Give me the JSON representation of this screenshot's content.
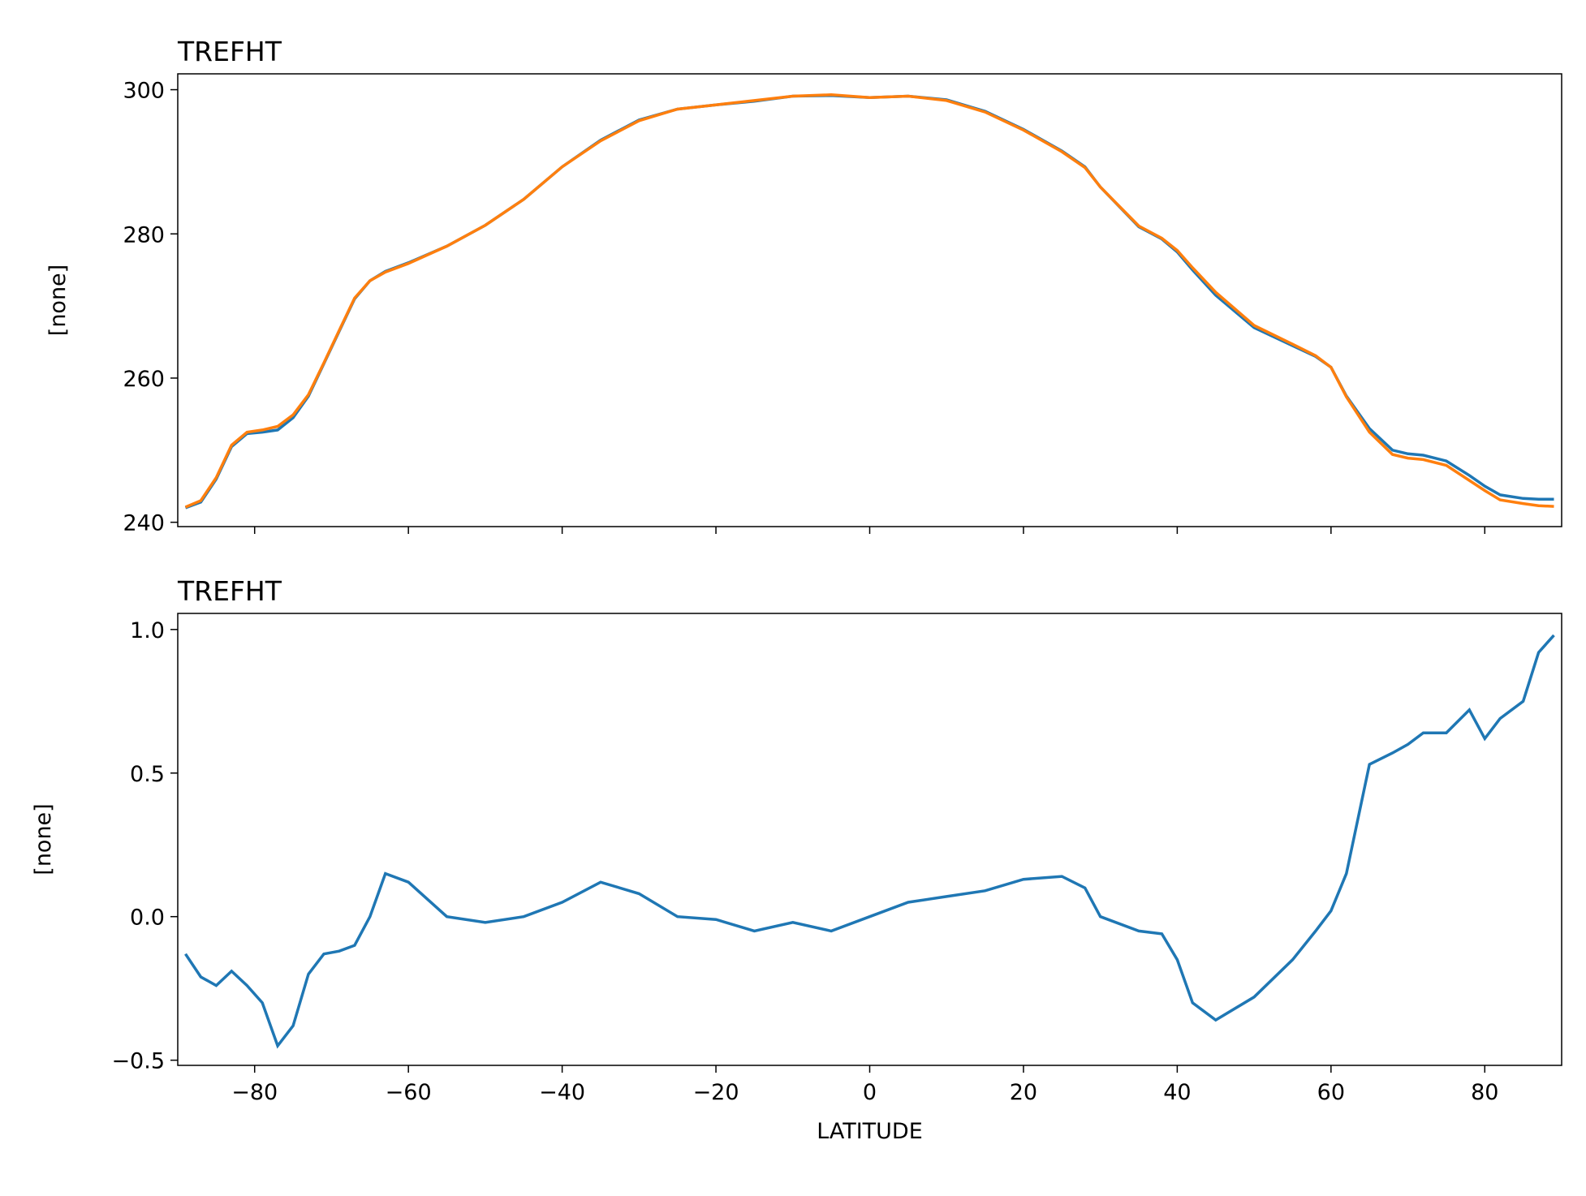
{
  "chart_data": [
    {
      "type": "line",
      "title": "TREFHT",
      "ylabel": "[none]",
      "x": [
        -89,
        -87,
        -85,
        -83,
        -81,
        -79,
        -77,
        -75,
        -73,
        -71,
        -69,
        -67,
        -65,
        -63,
        -60,
        -55,
        -50,
        -45,
        -40,
        -35,
        -30,
        -25,
        -20,
        -15,
        -10,
        -5,
        0,
        5,
        10,
        15,
        20,
        25,
        28,
        30,
        35,
        38,
        40,
        42,
        45,
        50,
        55,
        58,
        60,
        62,
        65,
        68,
        70,
        72,
        75,
        78,
        80,
        82,
        85,
        87,
        89
      ],
      "series": [
        {
          "color": "#1f77b4",
          "values": [
            242,
            242.8,
            246,
            250.5,
            252.3,
            252.5,
            252.8,
            254.5,
            257.5,
            262,
            266.5,
            271,
            273.5,
            274.8,
            276,
            278.3,
            281.2,
            284.8,
            289.3,
            293,
            295.8,
            297.3,
            297.9,
            298.4,
            299.1,
            299.2,
            298.9,
            299.1,
            298.6,
            297,
            294.5,
            291.5,
            289.3,
            286.5,
            281,
            279.3,
            277.5,
            275,
            271.5,
            267,
            264.5,
            263,
            261.5,
            257.5,
            253,
            250,
            249.5,
            249.3,
            248.5,
            246.5,
            245,
            243.8,
            243.3,
            243.2,
            243.2
          ]
        },
        {
          "color": "#ff7f0e",
          "values": [
            242.1,
            243.0,
            246.2,
            250.7,
            252.5,
            252.8,
            253.3,
            254.9,
            257.7,
            262.1,
            266.6,
            271.1,
            273.5,
            274.7,
            275.9,
            278.3,
            281.2,
            284.8,
            289.3,
            292.9,
            295.7,
            297.3,
            297.9,
            298.5,
            299.1,
            299.3,
            298.9,
            299.1,
            298.5,
            296.9,
            294.4,
            291.4,
            289.2,
            286.5,
            281.1,
            279.4,
            277.7,
            275.3,
            271.9,
            267.3,
            264.7,
            263.1,
            261.5,
            257.4,
            252.5,
            249.4,
            248.9,
            248.7,
            247.9,
            245.8,
            244.4,
            243.1,
            242.6,
            242.3,
            242.2
          ]
        }
      ],
      "xlim": [
        -90,
        90
      ],
      "xticks": [
        {
          "value": -80,
          "label": "−80"
        },
        {
          "value": -60,
          "label": "−60"
        },
        {
          "value": -40,
          "label": "−40"
        },
        {
          "value": -20,
          "label": "−20"
        },
        0,
        20,
        40,
        60,
        80
      ],
      "ylim": [
        239.4,
        302.2
      ],
      "yticks": [
        240,
        260,
        280,
        300
      ]
    },
    {
      "type": "line",
      "title": "TREFHT",
      "ylabel": "[none]",
      "xlabel": "LATITUDE",
      "x": [
        -89,
        -87,
        -85,
        -83,
        -81,
        -79,
        -77,
        -75,
        -73,
        -71,
        -69,
        -67,
        -65,
        -63,
        -60,
        -55,
        -50,
        -45,
        -40,
        -35,
        -30,
        -25,
        -20,
        -15,
        -10,
        -5,
        0,
        5,
        10,
        15,
        20,
        25,
        28,
        30,
        35,
        38,
        40,
        42,
        45,
        50,
        55,
        58,
        60,
        62,
        65,
        68,
        70,
        72,
        75,
        78,
        80,
        82,
        85,
        87,
        89
      ],
      "series": [
        {
          "color": "#1f77b4",
          "values": [
            -0.13,
            -0.21,
            -0.24,
            -0.19,
            -0.24,
            -0.3,
            -0.45,
            -0.38,
            -0.2,
            -0.13,
            -0.12,
            -0.1,
            0.0,
            0.15,
            0.12,
            0.0,
            -0.02,
            0.0,
            0.05,
            0.12,
            0.08,
            0.0,
            -0.01,
            -0.05,
            -0.02,
            -0.05,
            0.0,
            0.05,
            0.07,
            0.09,
            0.13,
            0.14,
            0.1,
            0.0,
            -0.05,
            -0.06,
            -0.15,
            -0.3,
            -0.36,
            -0.28,
            -0.15,
            -0.05,
            0.02,
            0.15,
            0.53,
            0.57,
            0.6,
            0.64,
            0.64,
            0.72,
            0.62,
            0.69,
            0.75,
            0.92,
            0.98
          ]
        }
      ],
      "xlim": [
        -90,
        90
      ],
      "xticks": [
        {
          "value": -80,
          "label": "−80"
        },
        {
          "value": -60,
          "label": "−60"
        },
        {
          "value": -40,
          "label": "−40"
        },
        {
          "value": -20,
          "label": "−20"
        },
        0,
        20,
        40,
        60,
        80
      ],
      "ylim": [
        -0.518,
        1.056
      ],
      "yticks": [
        {
          "value": -0.5,
          "label": "−0.5"
        },
        {
          "value": 0,
          "label": "0.0"
        },
        0.5,
        {
          "value": 1,
          "label": "1.0"
        }
      ]
    }
  ]
}
